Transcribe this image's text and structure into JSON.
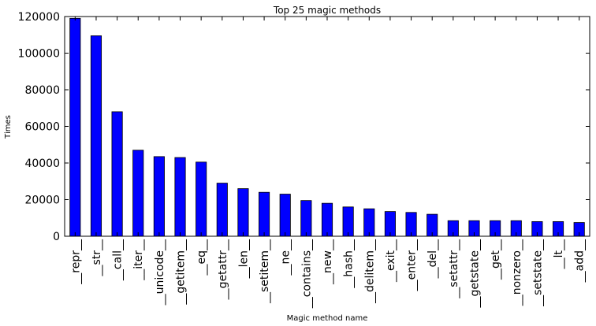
{
  "chart_data": {
    "type": "bar",
    "title": "Top 25 magic methods",
    "xlabel": "Magic method name",
    "ylabel": "Times",
    "ylim": [
      0,
      120000
    ],
    "yticks": [
      0,
      20000,
      40000,
      60000,
      80000,
      100000,
      120000
    ],
    "ytick_labels": [
      "0",
      "20000",
      "40000",
      "60000",
      "80000",
      "100000",
      "120000"
    ],
    "bar_color": "#0000ff",
    "categories": [
      "__repr__",
      "__str__",
      "__call__",
      "__iter__",
      "__unicode__",
      "__getitem__",
      "__eq__",
      "__getattr__",
      "__len__",
      "__setitem__",
      "__ne__",
      "__contains__",
      "__new__",
      "__hash__",
      "__delitem__",
      "__exit__",
      "__enter__",
      "__del__",
      "__setattr__",
      "__getstate__",
      "__get__",
      "__nonzero__",
      "__setstate__",
      "__lt__",
      "__add__"
    ],
    "values": [
      119000,
      109500,
      68000,
      47000,
      43500,
      43000,
      40500,
      29000,
      26000,
      24000,
      23000,
      19500,
      18000,
      16000,
      15000,
      13500,
      13000,
      12000,
      8500,
      8500,
      8500,
      8500,
      8000,
      8000,
      7500
    ]
  }
}
